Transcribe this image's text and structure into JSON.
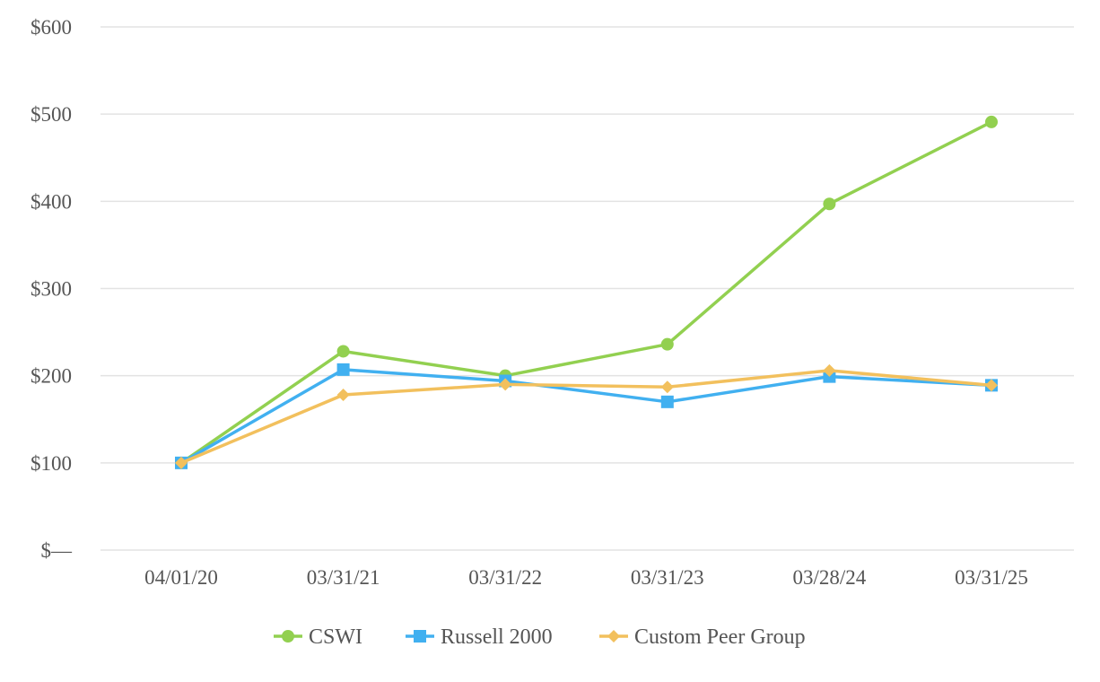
{
  "chart_data": {
    "type": "line",
    "categories": [
      "04/01/20",
      "03/31/21",
      "03/31/22",
      "03/31/23",
      "03/28/24",
      "03/31/25"
    ],
    "y_ticks": [
      0,
      100,
      200,
      300,
      400,
      500,
      600
    ],
    "y_tick_labels": [
      "$—",
      "$100",
      "$200",
      "$300",
      "$400",
      "$500",
      "$600"
    ],
    "ylim": [
      0,
      600
    ],
    "grid": true,
    "legend_position": "bottom",
    "series": [
      {
        "name": "CSWI",
        "color": "#92d050",
        "marker": "circle",
        "values": [
          100,
          228,
          200,
          236,
          397,
          491
        ]
      },
      {
        "name": "Russell 2000",
        "color": "#41b0f0",
        "marker": "square",
        "values": [
          100,
          207,
          194,
          170,
          199,
          189
        ]
      },
      {
        "name": "Custom Peer Group",
        "color": "#f2c05d",
        "marker": "diamond",
        "values": [
          100,
          178,
          190,
          187,
          206,
          189
        ]
      }
    ]
  }
}
